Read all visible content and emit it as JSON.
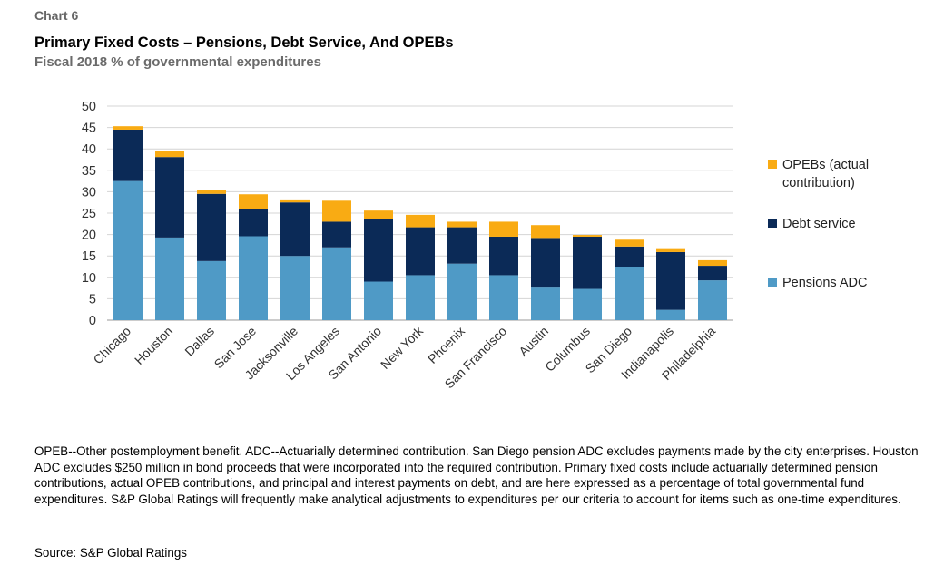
{
  "header": {
    "label": "Chart 6",
    "title": "Primary Fixed Costs – Pensions, Debt Service, And OPEBs",
    "subtitle": "Fiscal 2018 % of governmental expenditures"
  },
  "footer": {
    "note": "OPEB--Other postemployment benefit. ADC--Actuarially determined contribution. San Diego pension ADC excludes payments made by the city enterprises. Houston ADC excludes $250 million in bond proceeds that were incorporated into the required contribution. Primary fixed costs include actuarially determined pension contributions, actual OPEB contributions, and principal and interest payments on debt, and are here expressed as a percentage of total governmental fund expenditures. S&P Global Ratings will frequently make analytical adjustments to expenditures per our criteria to account for items such as one-time expenditures.",
    "source": "Source: S&P Global Ratings"
  },
  "chart_data": {
    "type": "bar",
    "stacked": true,
    "categories": [
      "Chicago",
      "Houston",
      "Dallas",
      "San Jose",
      "Jacksonville",
      "Los Angeles",
      "San Antonio",
      "New York",
      "Phoenix",
      "San Francisco",
      "Austin",
      "Columbus",
      "San Diego",
      "Indianapolis",
      "Philadelphia"
    ],
    "series": [
      {
        "name": "Pensions ADC",
        "color": "#4f9ac6",
        "values": [
          32.5,
          19.3,
          13.8,
          19.6,
          15.0,
          17.0,
          9.0,
          10.5,
          13.2,
          10.5,
          7.6,
          7.3,
          12.5,
          2.4,
          9.3
        ]
      },
      {
        "name": "Debt service",
        "color": "#0b2a57",
        "values": [
          12.0,
          18.8,
          15.7,
          6.3,
          12.5,
          6.0,
          14.7,
          11.2,
          8.5,
          9.0,
          11.6,
          12.2,
          4.7,
          13.5,
          3.4
        ]
      },
      {
        "name": "OPEBs (actual contribution)",
        "color": "#f9ab13",
        "values": [
          0.8,
          1.4,
          1.0,
          3.5,
          0.7,
          4.9,
          1.9,
          2.9,
          1.3,
          3.5,
          3.0,
          0.4,
          1.6,
          0.7,
          1.3
        ]
      }
    ],
    "legend_order": [
      "OPEBs (actual contribution)",
      "Debt service",
      "Pensions ADC"
    ],
    "legend_lines": [
      [
        "OPEBs (actual",
        "contribution)"
      ],
      [
        "Debt service"
      ],
      [
        "Pensions ADC"
      ]
    ],
    "ylim": [
      0,
      50
    ],
    "yticks": [
      0,
      5,
      10,
      15,
      20,
      25,
      30,
      35,
      40,
      45,
      50
    ],
    "grid": true,
    "legend_position": "right"
  }
}
